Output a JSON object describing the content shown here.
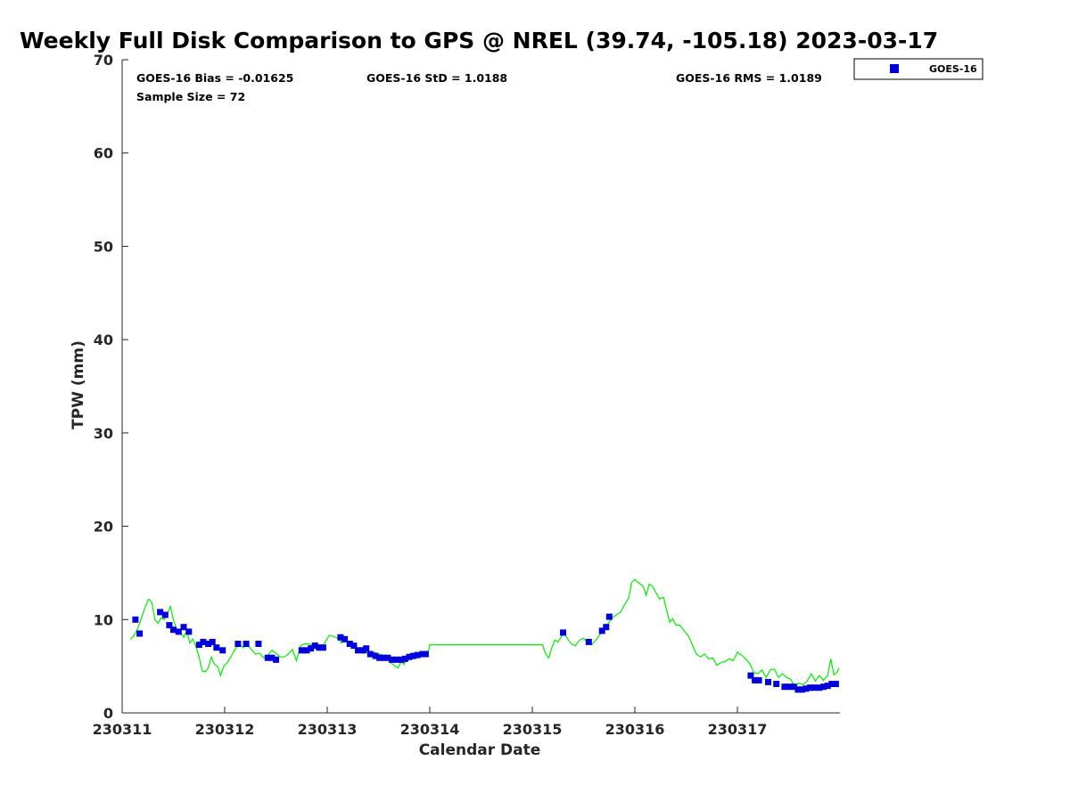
{
  "chart_data": {
    "type": "scatter",
    "title": "Weekly Full Disk Comparison to GPS @ NREL (39.74, -105.18) 2023-03-17",
    "xlabel": "Calendar Date",
    "ylabel": "TPW (mm)",
    "xlim": [
      230311,
      230318
    ],
    "ylim": [
      0,
      70
    ],
    "x_ticks": [
      {
        "value": 0,
        "label": "230311"
      },
      {
        "value": 1,
        "label": "230312"
      },
      {
        "value": 2,
        "label": "230313"
      },
      {
        "value": 3,
        "label": "230314"
      },
      {
        "value": 4,
        "label": "230315"
      },
      {
        "value": 5,
        "label": "230316"
      },
      {
        "value": 6,
        "label": "230317"
      }
    ],
    "y_ticks": [
      0,
      10,
      20,
      30,
      40,
      50,
      60,
      70
    ],
    "legend": {
      "position": "top-right",
      "entries": [
        "GOES-16"
      ]
    },
    "stats": {
      "bias": "GOES-16 Bias = -0.01625",
      "std": "GOES-16 StD = 1.0188",
      "rms": "GOES-16 RMS = 1.0189",
      "sample_size": "Sample Size = 72"
    },
    "series": [
      {
        "name": "GOES-16",
        "kind": "scatter",
        "color": "#0000dd",
        "points": [
          [
            0.13,
            10.0
          ],
          [
            0.17,
            8.5
          ],
          [
            0.37,
            10.8
          ],
          [
            0.42,
            10.5
          ],
          [
            0.46,
            9.4
          ],
          [
            0.5,
            8.9
          ],
          [
            0.55,
            8.7
          ],
          [
            0.6,
            9.2
          ],
          [
            0.65,
            8.7
          ],
          [
            0.75,
            7.3
          ],
          [
            0.79,
            7.6
          ],
          [
            0.84,
            7.4
          ],
          [
            0.88,
            7.6
          ],
          [
            0.92,
            7.0
          ],
          [
            0.98,
            6.7
          ],
          [
            1.13,
            7.4
          ],
          [
            1.21,
            7.4
          ],
          [
            1.33,
            7.4
          ],
          [
            1.42,
            5.9
          ],
          [
            1.46,
            5.9
          ],
          [
            1.5,
            5.7
          ],
          [
            1.75,
            6.7
          ],
          [
            1.8,
            6.7
          ],
          [
            1.84,
            6.9
          ],
          [
            1.88,
            7.2
          ],
          [
            1.92,
            7.0
          ],
          [
            1.96,
            7.0
          ],
          [
            2.13,
            8.1
          ],
          [
            2.17,
            7.9
          ],
          [
            2.22,
            7.4
          ],
          [
            2.26,
            7.2
          ],
          [
            2.3,
            6.7
          ],
          [
            2.35,
            6.7
          ],
          [
            2.38,
            6.9
          ],
          [
            2.42,
            6.3
          ],
          [
            2.47,
            6.1
          ],
          [
            2.51,
            5.9
          ],
          [
            2.55,
            5.9
          ],
          [
            2.59,
            5.9
          ],
          [
            2.63,
            5.7
          ],
          [
            2.68,
            5.7
          ],
          [
            2.72,
            5.7
          ],
          [
            2.76,
            5.8
          ],
          [
            2.8,
            6.0
          ],
          [
            2.84,
            6.1
          ],
          [
            2.88,
            6.2
          ],
          [
            2.93,
            6.3
          ],
          [
            2.96,
            6.3
          ],
          [
            4.3,
            8.6
          ],
          [
            4.55,
            7.6
          ],
          [
            4.68,
            8.8
          ],
          [
            4.72,
            9.2
          ],
          [
            4.75,
            10.3
          ],
          [
            6.13,
            4.0
          ],
          [
            6.17,
            3.5
          ],
          [
            6.21,
            3.5
          ],
          [
            6.3,
            3.3
          ],
          [
            6.38,
            3.1
          ],
          [
            6.46,
            2.8
          ],
          [
            6.51,
            2.8
          ],
          [
            6.55,
            2.8
          ],
          [
            6.59,
            2.5
          ],
          [
            6.63,
            2.5
          ],
          [
            6.67,
            2.6
          ],
          [
            6.71,
            2.7
          ],
          [
            6.75,
            2.7
          ],
          [
            6.8,
            2.7
          ],
          [
            6.84,
            2.8
          ],
          [
            6.88,
            2.9
          ],
          [
            6.92,
            3.1
          ],
          [
            6.96,
            3.1
          ]
        ]
      },
      {
        "name": "GPS",
        "kind": "line",
        "color": "#00ee00",
        "segments": [
          [
            [
              0.08,
              7.9
            ],
            [
              0.11,
              8.2
            ],
            [
              0.15,
              9.0
            ],
            [
              0.19,
              10.2
            ],
            [
              0.23,
              11.5
            ],
            [
              0.26,
              12.2
            ],
            [
              0.29,
              11.8
            ],
            [
              0.32,
              10.0
            ],
            [
              0.35,
              9.6
            ],
            [
              0.38,
              10.2
            ],
            [
              0.41,
              10.0
            ],
            [
              0.44,
              10.6
            ],
            [
              0.47,
              11.4
            ],
            [
              0.5,
              10.0
            ],
            [
              0.53,
              9.0
            ],
            [
              0.57,
              8.6
            ],
            [
              0.6,
              8.1
            ],
            [
              0.63,
              8.8
            ],
            [
              0.66,
              7.5
            ],
            [
              0.69,
              7.9
            ],
            [
              0.72,
              7.1
            ],
            [
              0.75,
              6.0
            ],
            [
              0.78,
              4.5
            ],
            [
              0.81,
              4.4
            ],
            [
              0.84,
              4.8
            ],
            [
              0.87,
              6.0
            ],
            [
              0.9,
              5.2
            ],
            [
              0.93,
              5.0
            ],
            [
              0.96,
              4.0
            ],
            [
              0.99,
              5.0
            ],
            [
              1.02,
              5.3
            ],
            [
              1.06,
              6.0
            ],
            [
              1.1,
              6.8
            ],
            [
              1.14,
              7.4
            ],
            [
              1.18,
              7.0
            ],
            [
              1.22,
              7.3
            ],
            [
              1.26,
              6.8
            ],
            [
              1.3,
              6.3
            ],
            [
              1.34,
              6.4
            ],
            [
              1.38,
              5.9
            ],
            [
              1.42,
              6.2
            ],
            [
              1.46,
              6.7
            ],
            [
              1.5,
              6.4
            ],
            [
              1.54,
              6.0
            ],
            [
              1.58,
              6.0
            ],
            [
              1.62,
              6.3
            ],
            [
              1.66,
              6.8
            ],
            [
              1.7,
              5.6
            ],
            [
              1.74,
              7.2
            ],
            [
              1.78,
              7.4
            ],
            [
              1.82,
              7.4
            ],
            [
              1.86,
              7.2
            ],
            [
              1.9,
              7.5
            ],
            [
              1.94,
              6.8
            ],
            [
              1.98,
              7.6
            ],
            [
              2.02,
              8.3
            ],
            [
              2.06,
              8.2
            ],
            [
              2.1,
              8.0
            ],
            [
              2.14,
              7.5
            ],
            [
              2.18,
              7.8
            ],
            [
              2.22,
              7.3
            ],
            [
              2.26,
              7.0
            ],
            [
              2.3,
              6.8
            ],
            [
              2.34,
              6.4
            ],
            [
              2.38,
              6.5
            ],
            [
              2.42,
              6.0
            ],
            [
              2.46,
              6.5
            ],
            [
              2.5,
              6.3
            ],
            [
              2.54,
              6.2
            ],
            [
              2.58,
              6.0
            ],
            [
              2.62,
              5.4
            ],
            [
              2.66,
              5.0
            ],
            [
              2.69,
              4.8
            ],
            [
              2.72,
              5.5
            ],
            [
              2.75,
              5.2
            ],
            [
              2.78,
              5.8
            ],
            [
              2.82,
              6.2
            ],
            [
              2.86,
              6.0
            ],
            [
              2.9,
              6.2
            ],
            [
              2.94,
              6.5
            ],
            [
              2.98,
              6.3
            ],
            [
              3.0,
              7.3
            ],
            [
              4.1,
              7.3
            ],
            [
              4.13,
              6.3
            ],
            [
              4.16,
              5.9
            ],
            [
              4.19,
              7.0
            ],
            [
              4.22,
              7.8
            ],
            [
              4.25,
              7.6
            ],
            [
              4.28,
              8.1
            ],
            [
              4.31,
              8.6
            ],
            [
              4.34,
              8.0
            ],
            [
              4.38,
              7.4
            ],
            [
              4.42,
              7.2
            ],
            [
              4.46,
              7.8
            ],
            [
              4.5,
              8.0
            ],
            [
              4.54,
              7.5
            ],
            [
              4.58,
              7.3
            ],
            [
              4.62,
              7.8
            ],
            [
              4.66,
              8.4
            ],
            [
              4.7,
              9.0
            ],
            [
              4.74,
              9.6
            ],
            [
              4.78,
              10.2
            ],
            [
              4.82,
              10.5
            ],
            [
              4.86,
              10.8
            ],
            [
              4.9,
              11.6
            ],
            [
              4.94,
              12.3
            ],
            [
              4.97,
              14.0
            ],
            [
              5.0,
              14.3
            ],
            [
              5.04,
              13.9
            ],
            [
              5.08,
              13.6
            ],
            [
              5.11,
              12.6
            ],
            [
              5.14,
              13.8
            ],
            [
              5.17,
              13.6
            ],
            [
              5.2,
              13.0
            ],
            [
              5.24,
              12.2
            ],
            [
              5.28,
              12.4
            ],
            [
              5.31,
              11.0
            ],
            [
              5.34,
              9.7
            ],
            [
              5.37,
              10.1
            ],
            [
              5.4,
              9.4
            ],
            [
              5.44,
              9.4
            ],
            [
              5.48,
              8.8
            ],
            [
              5.52,
              8.3
            ],
            [
              5.56,
              7.3
            ],
            [
              5.6,
              6.3
            ],
            [
              5.64,
              6.0
            ],
            [
              5.68,
              6.3
            ],
            [
              5.72,
              5.8
            ],
            [
              5.76,
              5.9
            ],
            [
              5.8,
              5.1
            ],
            [
              5.84,
              5.4
            ],
            [
              5.88,
              5.5
            ],
            [
              5.92,
              5.8
            ],
            [
              5.96,
              5.6
            ],
            [
              6.0,
              6.5
            ],
            [
              6.04,
              6.2
            ],
            [
              6.08,
              5.8
            ],
            [
              6.12,
              5.3
            ],
            [
              6.16,
              4.3
            ],
            [
              6.2,
              4.2
            ],
            [
              6.24,
              4.6
            ],
            [
              6.28,
              3.8
            ],
            [
              6.32,
              4.6
            ],
            [
              6.36,
              4.7
            ],
            [
              6.4,
              3.8
            ],
            [
              6.44,
              4.2
            ],
            [
              6.48,
              3.8
            ],
            [
              6.52,
              3.6
            ],
            [
              6.56,
              2.8
            ],
            [
              6.6,
              3.2
            ],
            [
              6.64,
              3.0
            ],
            [
              6.68,
              3.4
            ],
            [
              6.72,
              4.2
            ],
            [
              6.76,
              3.4
            ],
            [
              6.8,
              4.0
            ],
            [
              6.84,
              3.5
            ],
            [
              6.88,
              4.0
            ],
            [
              6.91,
              5.8
            ],
            [
              6.94,
              4.1
            ],
            [
              6.97,
              4.3
            ],
            [
              6.99,
              4.8
            ]
          ]
        ]
      }
    ]
  }
}
